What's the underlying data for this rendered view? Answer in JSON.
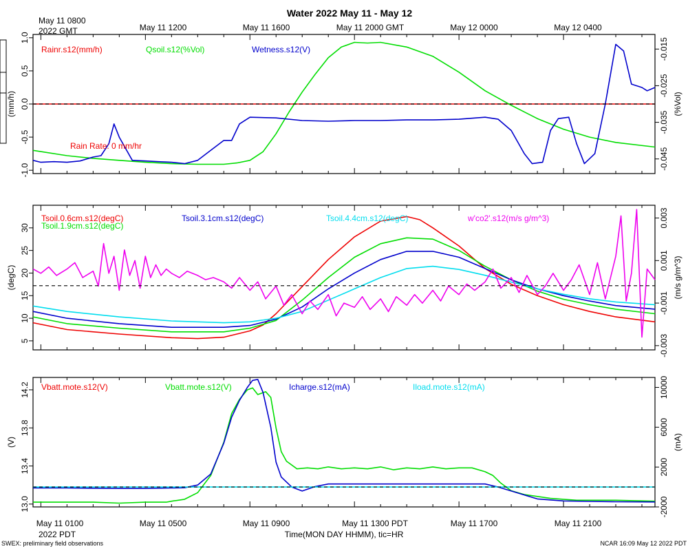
{
  "figure": {
    "title": "Water 2022 May 11 - May 12",
    "top_left_line1": "May 11 0800",
    "top_left_line2": "2022 GMT",
    "top_axis_labels": [
      "May 11 1200",
      "May 11 1600",
      "May 11 2000 GMT",
      "May 12 0000",
      "May 12 0400"
    ],
    "bottom_axis_labels": [
      "May 11 0100",
      "May 11 0500",
      "May 11 0900",
      "May 11 1300 PDT",
      "May 11 1700",
      "May 11 2100"
    ],
    "bottom_left_label": "2022 PDT",
    "x_label": "Time(MON DAY HHMM), tic=HR",
    "footer_left": "SWEX: preliminary field observations",
    "footer_right": "NCAR 16:09 May 12 2022 PDT"
  },
  "chart_data": [
    {
      "type": "line",
      "panel": "water",
      "x_unit": "hours since May 11 0000 PDT",
      "xlim": [
        0.7,
        24.5
      ],
      "left_axis": {
        "label": "(mm/h)",
        "ylim": [
          -1.05,
          1.05
        ],
        "ticks": [
          -1.0,
          -0.5,
          0.0,
          0.5,
          1.0
        ],
        "tick_labels": [
          "-1.0",
          "-0.5",
          "0.0",
          "0.5",
          "1.0"
        ]
      },
      "right_axis": {
        "label": "(%Vol)",
        "ylim": [
          -0.049,
          -0.011
        ],
        "ticks": [
          -0.045,
          -0.035,
          -0.025,
          -0.015
        ],
        "tick_labels": [
          "-0.045",
          "-0.035",
          "-0.025",
          "-0.015"
        ]
      },
      "legend": [
        "Rainr.s12(mm/h)",
        "Qsoil.s12(%Vol)",
        "Wetness.s12(V)"
      ],
      "annotation": "Rain Rate: 0 mm/hr",
      "reference_line_left": 0.0,
      "series": [
        {
          "name": "Rainr.s12(mm/h)",
          "axis": "left",
          "color": "#ee0000",
          "x": [
            0.7,
            24.5
          ],
          "y": [
            0.0,
            0.0
          ]
        },
        {
          "name": "Qsoil.s12(%Vol)",
          "axis": "left",
          "color": "#00dd00",
          "x": [
            0.7,
            2,
            3,
            4,
            5,
            6,
            7,
            8,
            8.5,
            9,
            9.5,
            10,
            10.5,
            11,
            11.5,
            12,
            12.5,
            13,
            13.5,
            14,
            15,
            16,
            17,
            18,
            19,
            20,
            21,
            22,
            23,
            24.5
          ],
          "y": [
            -0.7,
            -0.78,
            -0.82,
            -0.85,
            -0.88,
            -0.9,
            -0.91,
            -0.91,
            -0.89,
            -0.85,
            -0.72,
            -0.45,
            -0.12,
            0.18,
            0.45,
            0.7,
            0.86,
            0.93,
            0.92,
            0.93,
            0.86,
            0.72,
            0.48,
            0.2,
            -0.02,
            -0.22,
            -0.38,
            -0.5,
            -0.58,
            -0.65
          ]
        },
        {
          "name": "Wetness.s12(V)",
          "axis": "left",
          "color": "#0000cc",
          "x": [
            0.7,
            1,
            1.5,
            2,
            2.5,
            3,
            3.3,
            3.6,
            3.8,
            4,
            4.5,
            5,
            5.5,
            6,
            6.5,
            7,
            7.5,
            8,
            8.3,
            8.6,
            9,
            10,
            11,
            12,
            13,
            14,
            15,
            16,
            17,
            18,
            18.5,
            19,
            19.5,
            19.8,
            20.2,
            20.5,
            20.8,
            21.2,
            21.5,
            21.8,
            22.2,
            22.6,
            23,
            23.3,
            23.6,
            24,
            24.2,
            24.5
          ],
          "y": [
            -0.85,
            -0.88,
            -0.87,
            -0.88,
            -0.86,
            -0.8,
            -0.78,
            -0.6,
            -0.3,
            -0.5,
            -0.85,
            -0.86,
            -0.87,
            -0.88,
            -0.9,
            -0.85,
            -0.7,
            -0.55,
            -0.55,
            -0.3,
            -0.2,
            -0.21,
            -0.25,
            -0.26,
            -0.25,
            -0.25,
            -0.24,
            -0.24,
            -0.23,
            -0.2,
            -0.23,
            -0.4,
            -0.75,
            -0.9,
            -0.88,
            -0.4,
            -0.22,
            -0.2,
            -0.6,
            -0.9,
            -0.75,
            0.0,
            0.9,
            0.8,
            0.3,
            0.25,
            0.2,
            0.25
          ]
        }
      ]
    },
    {
      "type": "line",
      "panel": "soil temperature",
      "x_unit": "hours since May 11 0000 PDT",
      "xlim": [
        0.7,
        24.5
      ],
      "left_axis": {
        "label": "(degC)",
        "ylim": [
          3,
          35
        ],
        "ticks": [
          5,
          10,
          15,
          20,
          25,
          30
        ],
        "tick_labels": [
          "5",
          "10",
          "15",
          "20",
          "25",
          "30"
        ]
      },
      "right_axis": {
        "label": "(m/s g/m^3)",
        "ylim": [
          -0.0032,
          0.0036
        ],
        "ticks": [
          -0.003,
          -0.001,
          0.001,
          0.003
        ],
        "tick_labels": [
          "-0.003",
          "-0.001",
          "0.001",
          "0.003"
        ]
      },
      "legend": [
        "Tsoil.0.6cm.s12(degC)",
        "Tsoil.1.9cm.s12(degC)",
        "Tsoil.3.1cm.s12(degC)",
        "Tsoil.4.4cm.s12(degC)",
        "w'co2'.s12(m/s g/m^3)"
      ],
      "reference_line_left": 17.2,
      "series": [
        {
          "name": "Tsoil.0.6cm.s12(degC)",
          "axis": "left",
          "color": "#ee0000",
          "x": [
            0.7,
            2,
            4,
            6,
            7,
            8,
            9,
            9.5,
            10,
            11,
            12,
            13,
            14,
            15,
            15.5,
            16,
            17,
            18,
            19,
            20,
            21,
            22,
            23,
            24.5
          ],
          "y": [
            9.0,
            7.5,
            6.5,
            5.7,
            5.5,
            5.8,
            7.2,
            8.5,
            11.0,
            17.0,
            23.0,
            28.0,
            31.5,
            32.5,
            31.8,
            30.0,
            26.0,
            21.0,
            17.5,
            15.0,
            13.0,
            11.5,
            10.3,
            9.2
          ]
        },
        {
          "name": "Tsoil.1.9cm.s12(degC)",
          "axis": "left",
          "color": "#00dd00",
          "x": [
            0.7,
            2,
            4,
            6,
            8,
            9,
            10,
            11,
            12,
            13,
            14,
            15,
            16,
            17,
            18,
            19,
            20,
            21,
            22,
            23,
            24.5
          ],
          "y": [
            10.3,
            8.8,
            7.8,
            7.0,
            7.0,
            7.8,
            9.5,
            14.0,
            19.0,
            23.5,
            26.5,
            27.8,
            27.5,
            25.0,
            21.5,
            18.5,
            16.0,
            14.2,
            13.0,
            12.0,
            11.0
          ]
        },
        {
          "name": "Tsoil.3.1cm.s12(degC)",
          "axis": "left",
          "color": "#0000cc",
          "x": [
            0.7,
            2,
            4,
            6,
            8,
            9,
            10,
            11,
            12,
            13,
            14,
            15,
            16,
            17,
            18,
            19,
            20,
            21,
            22,
            23,
            24.5
          ],
          "y": [
            11.5,
            10.0,
            8.8,
            8.0,
            8.0,
            8.4,
            9.8,
            12.5,
            16.5,
            20.0,
            23.0,
            24.8,
            24.8,
            23.5,
            21.0,
            18.5,
            16.5,
            15.0,
            13.8,
            12.8,
            12.0
          ]
        },
        {
          "name": "Tsoil.4.4cm.s12(degC)",
          "axis": "left",
          "color": "#00ddee",
          "x": [
            0.7,
            2,
            4,
            6,
            8,
            9,
            10,
            11,
            12,
            13,
            14,
            15,
            16,
            17,
            18,
            19,
            20,
            21,
            22,
            23,
            24.5
          ],
          "y": [
            12.7,
            11.5,
            10.3,
            9.4,
            9.0,
            9.2,
            10.0,
            11.5,
            14.0,
            16.5,
            19.0,
            21.0,
            21.5,
            20.8,
            19.5,
            18.0,
            16.5,
            15.3,
            14.3,
            13.6,
            13.0
          ]
        },
        {
          "name": "w'co2'.s12(m/s g/m^3)",
          "axis": "right",
          "color": "#ee00ee",
          "x": [
            0.7,
            1,
            1.3,
            1.6,
            2,
            2.3,
            2.6,
            3,
            3.2,
            3.4,
            3.6,
            3.8,
            4,
            4.2,
            4.4,
            4.6,
            4.8,
            5,
            5.2,
            5.4,
            5.6,
            5.8,
            6,
            6.3,
            6.6,
            7,
            7.3,
            7.6,
            8,
            8.3,
            8.6,
            9,
            9.3,
            9.6,
            10,
            10.3,
            10.6,
            11,
            11.3,
            11.6,
            12,
            12.3,
            12.6,
            13,
            13.3,
            13.6,
            14,
            14.3,
            14.6,
            15,
            15.3,
            15.6,
            16,
            16.3,
            16.6,
            17,
            17.3,
            17.6,
            18,
            18.3,
            18.6,
            19,
            19.3,
            19.6,
            20,
            20.3,
            20.6,
            21,
            21.3,
            21.6,
            22,
            22.3,
            22.6,
            23,
            23.2,
            23.4,
            23.6,
            23.8,
            24,
            24.2,
            24.5
          ],
          "y": [
            0.0006,
            0.0004,
            0.0007,
            0.0003,
            0.0006,
            0.0009,
            0.0002,
            0.0005,
            -0.0002,
            0.0018,
            0.0004,
            0.0012,
            -0.0004,
            0.0015,
            0.0003,
            0.001,
            -0.0003,
            0.0012,
            0.0002,
            0.0008,
            0.0003,
            0.0006,
            0.0004,
            0.0002,
            0.0005,
            0.0003,
            0.0001,
            0.0002,
            0.0,
            -0.0003,
            0.0002,
            -0.0004,
            0.0,
            -0.0008,
            -0.0002,
            -0.0011,
            -0.0006,
            -0.0015,
            -0.0009,
            -0.0013,
            -0.0006,
            -0.0016,
            -0.001,
            -0.0012,
            -0.0007,
            -0.0013,
            -0.0008,
            -0.0014,
            -0.0007,
            -0.0011,
            -0.0006,
            -0.001,
            -0.0004,
            -0.0009,
            -0.0002,
            -0.0006,
            -0.0001,
            -0.0004,
            0.0,
            0.0006,
            -0.0003,
            0.0002,
            -0.0005,
            0.0003,
            -0.0006,
            -0.0002,
            0.0004,
            -0.0004,
            0.0001,
            0.0008,
            -0.0006,
            0.0009,
            -0.0008,
            0.0012,
            0.0031,
            -0.0009,
            0.0004,
            0.0034,
            -0.0026,
            0.0006,
            0.0001
          ]
        }
      ]
    },
    {
      "type": "line",
      "panel": "battery",
      "x_unit": "hours since May 11 0000 PDT",
      "xlim": [
        0.7,
        24.5
      ],
      "left_axis": {
        "label": "(V)",
        "ylim": [
          12.97,
          14.33
        ],
        "ticks": [
          13.0,
          13.4,
          13.8,
          14.2
        ],
        "tick_labels": [
          "13.0",
          "13.4",
          "13.8",
          "14.2"
        ]
      },
      "right_axis": {
        "label": "(mA)",
        "ylim": [
          -2000,
          11000
        ],
        "ticks": [
          -2000,
          2000,
          6000,
          10000
        ],
        "tick_labels": [
          "-2000",
          "2000",
          "6000",
          "10000"
        ]
      },
      "legend": [
        "Vbatt.mote.s12(V)",
        "Vbatt.mote.s12(V)",
        "Icharge.s12(mA)",
        "Iload.mote.s12(mA)"
      ],
      "reference_line_right": 0,
      "series": [
        {
          "name": "Vbatt.mote.s12(V)",
          "axis": "left",
          "color": "#00dd00",
          "x": [
            0.7,
            2,
            3,
            4,
            5,
            5.8,
            6,
            6.5,
            7,
            7.5,
            8,
            8.3,
            8.6,
            8.9,
            9.1,
            9.3,
            9.6,
            9.8,
            10.0,
            10.2,
            10.4,
            10.8,
            11.2,
            11.6,
            12,
            12.5,
            13,
            13.5,
            14,
            14.5,
            15,
            15.5,
            16,
            16.5,
            17,
            17.5,
            18,
            18.3,
            18.6,
            19,
            19.5,
            20,
            20.5,
            21,
            21.5,
            22,
            23,
            24.5
          ],
          "y": [
            13.02,
            13.02,
            13.02,
            13.01,
            13.02,
            13.02,
            13.03,
            13.05,
            13.12,
            13.3,
            13.65,
            13.95,
            14.1,
            14.2,
            14.22,
            14.15,
            14.18,
            14.12,
            13.8,
            13.55,
            13.45,
            13.37,
            13.38,
            13.37,
            13.39,
            13.37,
            13.38,
            13.37,
            13.39,
            13.36,
            13.38,
            13.37,
            13.39,
            13.37,
            13.38,
            13.38,
            13.34,
            13.3,
            13.22,
            13.14,
            13.1,
            13.08,
            13.06,
            13.05,
            13.04,
            13.04,
            13.04,
            13.03
          ]
        },
        {
          "name": "Icharge.s12(mA)",
          "axis": "right",
          "color": "#0000cc",
          "x": [
            0.7,
            2,
            4,
            5,
            6,
            6.5,
            7,
            7.5,
            8,
            8.3,
            8.6,
            8.9,
            9.1,
            9.3,
            9.5,
            9.8,
            10.0,
            10.2,
            10.6,
            11,
            11.5,
            12,
            13,
            14,
            15,
            16,
            17,
            17.5,
            18,
            18.5,
            19,
            20,
            21,
            22,
            23,
            24.5
          ],
          "y": [
            -100,
            -100,
            -150,
            -150,
            -100,
            -80,
            200,
            1300,
            4400,
            7000,
            8700,
            10000,
            10700,
            10800,
            9500,
            6000,
            2500,
            1000,
            0,
            -400,
            50,
            300,
            300,
            300,
            300,
            300,
            300,
            300,
            300,
            0,
            -400,
            -1200,
            -1400,
            -1450,
            -1480,
            -1500
          ]
        },
        {
          "name": "Iload.mote.s12(mA)",
          "axis": "right",
          "color": "#00ddee",
          "x": [
            0.7,
            24.5
          ],
          "y": [
            0,
            0
          ]
        }
      ]
    }
  ]
}
